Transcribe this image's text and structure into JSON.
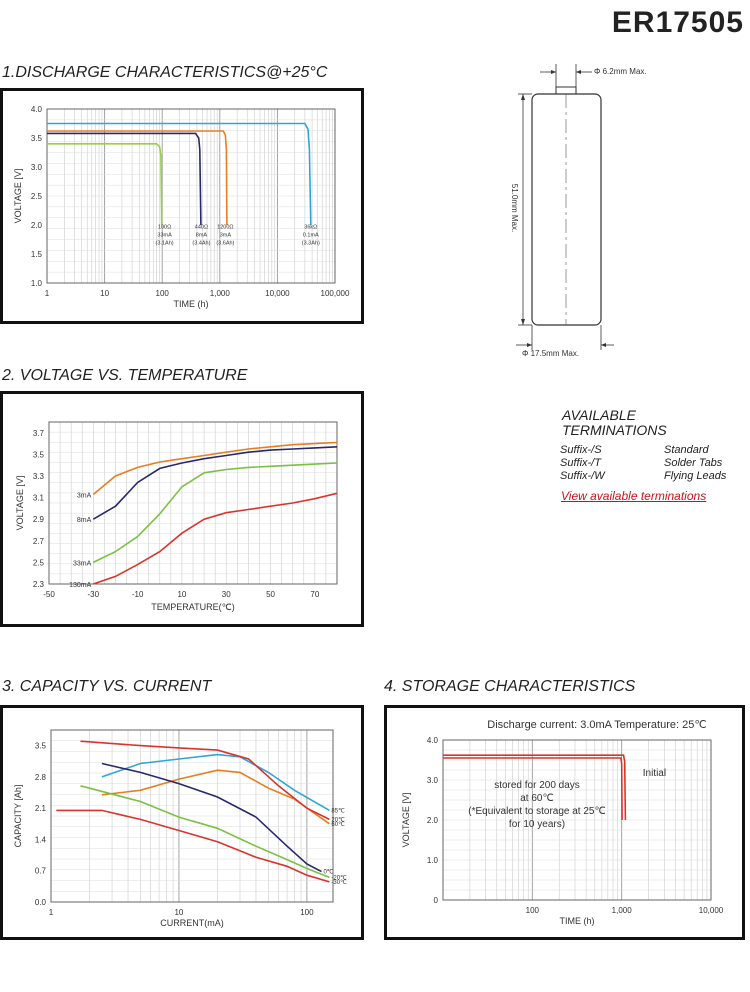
{
  "model": "ER17505",
  "dimensions": {
    "top_diameter": "Φ 6.2mm Max.",
    "height": "51.0mm Max.",
    "bottom_diameter": "Φ 17.5mm Max."
  },
  "terminations": {
    "title_line1": "AVAILABLE",
    "title_line2": "TERMINATIONS",
    "items": [
      {
        "suffix": "Suffix-/S",
        "label": "Standard"
      },
      {
        "suffix": "Suffix-/T",
        "label": "Solder Tabs"
      },
      {
        "suffix": "Suffix-/W",
        "label": "Flying Leads"
      }
    ],
    "link": "View available terminations"
  },
  "sections": {
    "s1": "1.DISCHARGE CHARACTERISTICS@+25°C",
    "s2": "2. VOLTAGE VS. TEMPERATURE",
    "s3": "3. CAPACITY VS. CURRENT",
    "s4": "4. STORAGE CHARACTERISTICS"
  },
  "chart_data": [
    {
      "id": "discharge",
      "type": "line",
      "xscale": "log",
      "xlim": [
        1,
        100000
      ],
      "ylim": [
        1.0,
        4.0
      ],
      "xlabel": "TIME (h)",
      "ylabel": "VOLTAGE [V]",
      "xticks": [
        {
          "v": 1,
          "l": "1"
        },
        {
          "v": 10,
          "l": "10"
        },
        {
          "v": 100,
          "l": "100"
        },
        {
          "v": 1000,
          "l": "1,000"
        },
        {
          "v": 10000,
          "l": "10,000"
        },
        {
          "v": 100000,
          "l": "100,000"
        }
      ],
      "yticks": [
        1.0,
        1.5,
        2.0,
        2.5,
        3.0,
        3.5,
        4.0
      ],
      "series": [
        {
          "color": "#9acb4c",
          "points": [
            [
              1,
              3.4
            ],
            [
              80,
              3.4
            ],
            [
              90,
              3.35
            ],
            [
              95,
              3.2
            ],
            [
              98,
              2.0
            ]
          ],
          "annotation": [
            "100Ω",
            "33mA",
            "(3.1Ah)"
          ],
          "anno_x": 110
        },
        {
          "color": "#28286a",
          "points": [
            [
              1,
              3.58
            ],
            [
              380,
              3.58
            ],
            [
              430,
              3.5
            ],
            [
              450,
              3.3
            ],
            [
              470,
              2.0
            ]
          ],
          "annotation": [
            "440Ω",
            "8mA",
            "(3.4Ah)"
          ],
          "anno_x": 480
        },
        {
          "color": "#e67e22",
          "points": [
            [
              1,
              3.62
            ],
            [
              1150,
              3.62
            ],
            [
              1250,
              3.55
            ],
            [
              1300,
              3.3
            ],
            [
              1330,
              2.0
            ]
          ],
          "annotation": [
            "1200Ω",
            "3mA",
            "(3.6Ah)"
          ],
          "anno_x": 1250
        },
        {
          "color": "#2ea6d8",
          "points": [
            [
              1,
              3.75
            ],
            [
              30000,
              3.75
            ],
            [
              34000,
              3.65
            ],
            [
              36000,
              3.3
            ],
            [
              38000,
              2.0
            ]
          ],
          "annotation": [
            "36kΩ",
            "0.1mA",
            "(3.3Ah)"
          ],
          "anno_x": 38000
        }
      ]
    },
    {
      "id": "voltage_temp",
      "type": "line",
      "xlim": [
        -50,
        80
      ],
      "ylim": [
        2.3,
        3.8
      ],
      "xlabel": "TEMPERATURE(℃)",
      "ylabel": "VOLTAGE [V]",
      "xticks": [
        {
          "v": -50,
          "l": "-50"
        },
        {
          "v": -30,
          "l": "-30"
        },
        {
          "v": -10,
          "l": "-10"
        },
        {
          "v": 10,
          "l": "10"
        },
        {
          "v": 30,
          "l": "30"
        },
        {
          "v": 50,
          "l": "50"
        },
        {
          "v": 70,
          "l": "70"
        }
      ],
      "yticks": [
        2.3,
        2.5,
        2.7,
        2.9,
        3.1,
        3.3,
        3.5,
        3.7
      ],
      "series": [
        {
          "name": "3mA",
          "color": "#e67e22",
          "points": [
            [
              -30,
              3.13
            ],
            [
              -20,
              3.3
            ],
            [
              -10,
              3.38
            ],
            [
              0,
              3.43
            ],
            [
              10,
              3.46
            ],
            [
              20,
              3.49
            ],
            [
              30,
              3.52
            ],
            [
              40,
              3.55
            ],
            [
              50,
              3.57
            ],
            [
              60,
              3.59
            ],
            [
              70,
              3.6
            ],
            [
              80,
              3.61
            ]
          ]
        },
        {
          "name": "8mA",
          "color": "#28286a",
          "points": [
            [
              -30,
              2.9
            ],
            [
              -20,
              3.02
            ],
            [
              -10,
              3.24
            ],
            [
              0,
              3.37
            ],
            [
              10,
              3.42
            ],
            [
              20,
              3.46
            ],
            [
              30,
              3.49
            ],
            [
              40,
              3.52
            ],
            [
              50,
              3.54
            ],
            [
              60,
              3.55
            ],
            [
              70,
              3.56
            ],
            [
              80,
              3.57
            ]
          ]
        },
        {
          "name": "33mA",
          "color": "#7bc043",
          "points": [
            [
              -30,
              2.5
            ],
            [
              -20,
              2.6
            ],
            [
              -10,
              2.74
            ],
            [
              0,
              2.95
            ],
            [
              10,
              3.2
            ],
            [
              20,
              3.33
            ],
            [
              30,
              3.36
            ],
            [
              40,
              3.38
            ],
            [
              50,
              3.39
            ],
            [
              60,
              3.4
            ],
            [
              70,
              3.41
            ],
            [
              80,
              3.42
            ]
          ]
        },
        {
          "name": "130mA",
          "color": "#d9342b",
          "points": [
            [
              -30,
              2.3
            ],
            [
              -20,
              2.37
            ],
            [
              -10,
              2.48
            ],
            [
              0,
              2.6
            ],
            [
              10,
              2.77
            ],
            [
              20,
              2.9
            ],
            [
              30,
              2.96
            ],
            [
              40,
              2.99
            ],
            [
              50,
              3.02
            ],
            [
              60,
              3.05
            ],
            [
              70,
              3.09
            ],
            [
              80,
              3.14
            ]
          ]
        }
      ]
    },
    {
      "id": "capacity_current",
      "type": "line",
      "xscale": "log",
      "xlim": [
        1,
        160
      ],
      "ylim": [
        0,
        3.85
      ],
      "xlabel": "CURRENT(mA)",
      "ylabel": "CAPACITY [Ah]",
      "xticks": [
        {
          "v": 1,
          "l": "1"
        },
        {
          "v": 10,
          "l": "10"
        },
        {
          "v": 100,
          "l": "100"
        }
      ],
      "yticks": [
        0,
        0.7,
        1.4,
        2.1,
        2.8,
        3.5
      ],
      "series": [
        {
          "name": "85℃",
          "color": "#2ea6d8",
          "points": [
            [
              2.5,
              2.8
            ],
            [
              5,
              3.1
            ],
            [
              10,
              3.2
            ],
            [
              20,
              3.3
            ],
            [
              30,
              3.25
            ],
            [
              50,
              2.9
            ],
            [
              80,
              2.5
            ],
            [
              150,
              2.05
            ]
          ]
        },
        {
          "name": "60℃",
          "color": "#e67e22",
          "points": [
            [
              2.5,
              2.4
            ],
            [
              5,
              2.5
            ],
            [
              10,
              2.75
            ],
            [
              20,
              2.95
            ],
            [
              30,
              2.9
            ],
            [
              50,
              2.55
            ],
            [
              80,
              2.3
            ],
            [
              150,
              1.75
            ]
          ]
        },
        {
          "name": "20℃",
          "color": "#d9342b",
          "points": [
            [
              1.7,
              3.6
            ],
            [
              5,
              3.5
            ],
            [
              10,
              3.45
            ],
            [
              20,
              3.4
            ],
            [
              35,
              3.2
            ],
            [
              60,
              2.6
            ],
            [
              100,
              2.1
            ],
            [
              150,
              1.85
            ]
          ]
        },
        {
          "name": "0℃",
          "color": "#28286a",
          "points": [
            [
              2.5,
              3.1
            ],
            [
              5,
              2.9
            ],
            [
              10,
              2.65
            ],
            [
              20,
              2.35
            ],
            [
              40,
              1.9
            ],
            [
              70,
              1.25
            ],
            [
              100,
              0.85
            ],
            [
              130,
              0.68
            ]
          ]
        },
        {
          "name": "-20℃",
          "color": "#7bc043",
          "points": [
            [
              1.7,
              2.6
            ],
            [
              5,
              2.25
            ],
            [
              10,
              1.9
            ],
            [
              20,
              1.65
            ],
            [
              40,
              1.25
            ],
            [
              70,
              0.95
            ],
            [
              100,
              0.75
            ],
            [
              150,
              0.55
            ]
          ]
        },
        {
          "name": "-30℃",
          "color": "#d9342b",
          "points": [
            [
              1.1,
              2.05
            ],
            [
              2.5,
              2.05
            ],
            [
              5,
              1.85
            ],
            [
              10,
              1.6
            ],
            [
              20,
              1.35
            ],
            [
              40,
              1.0
            ],
            [
              70,
              0.8
            ],
            [
              100,
              0.6
            ],
            [
              150,
              0.45
            ]
          ]
        }
      ]
    },
    {
      "id": "storage",
      "type": "line",
      "xscale": "log",
      "xlim": [
        10,
        10000
      ],
      "ylim": [
        0,
        4.0
      ],
      "title": "Discharge current: 3.0mA  Temperature:  25℃",
      "xlabel": "TIME (h)",
      "ylabel": "VOLTAGE [V]",
      "xticks": [
        {
          "v": 100,
          "l": "100"
        },
        {
          "v": 1000,
          "l": "1,000"
        },
        {
          "v": 10000,
          "l": "10,000"
        }
      ],
      "yticks": [
        {
          "v": 0,
          "l": "0"
        },
        {
          "v": 1.0,
          "l": "1.0"
        },
        {
          "v": 2.0,
          "l": "2.0"
        },
        {
          "v": 3.0,
          "l": "3.0"
        },
        {
          "v": 4.0,
          "l": "4.0"
        }
      ],
      "series": [
        {
          "color": "#d9342b",
          "points": [
            [
              10,
              3.55
            ],
            [
              980,
              3.55
            ],
            [
              1000,
              3.4
            ],
            [
              1010,
              2.0
            ]
          ]
        },
        {
          "color": "#d9342b",
          "points": [
            [
              10,
              3.62
            ],
            [
              1050,
              3.62
            ],
            [
              1080,
              3.45
            ],
            [
              1100,
              2.0
            ]
          ]
        }
      ],
      "notes": [
        "stored for 200 days",
        "at 60℃",
        "(*Equivalent to storage at 25℃",
        "for 10 years)"
      ],
      "initial_label": "Initial"
    }
  ]
}
